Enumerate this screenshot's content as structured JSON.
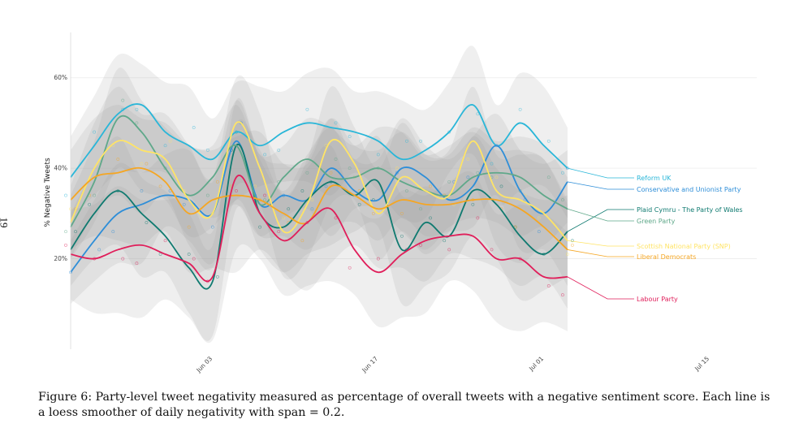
{
  "page_number": "19",
  "caption": "Figure 6: Party-level tweet negativity measured as percentage of overall tweets with a negative sentiment score. Each line is a loess smoother of daily negativity with span = 0.2.",
  "chart_data": {
    "type": "line",
    "title": "",
    "xlabel": "",
    "ylabel": "% Negative Tweets",
    "x_ticks": [
      "Jun 03",
      "Jun 17",
      "Jul 01",
      "Jul 15"
    ],
    "y_ticks": [
      "20%",
      "40%",
      "60%"
    ],
    "xlim": [
      "2024-05-22",
      "2024-07-19"
    ],
    "ylim": [
      0,
      70
    ],
    "grid": true,
    "legend": "right, line-end labels",
    "x_dates": [
      "2024-05-22",
      "2024-05-24",
      "2024-05-26",
      "2024-05-28",
      "2024-05-30",
      "2024-06-01",
      "2024-06-03",
      "2024-06-05",
      "2024-06-07",
      "2024-06-09",
      "2024-06-11",
      "2024-06-13",
      "2024-06-15",
      "2024-06-17",
      "2024-06-19",
      "2024-06-21",
      "2024-06-23",
      "2024-06-25",
      "2024-06-27",
      "2024-06-29",
      "2024-07-01",
      "2024-07-03"
    ],
    "series": [
      {
        "name": "Reform UK",
        "color": "#29b6d8",
        "values": [
          38,
          45,
          52,
          54,
          48,
          45,
          42,
          48,
          45,
          48,
          50,
          49,
          48,
          46,
          42,
          44,
          48,
          54,
          45,
          50,
          45,
          40
        ]
      },
      {
        "name": "Conservative and Unionist Party",
        "color": "#2e8ed8",
        "values": [
          17,
          24,
          30,
          32,
          34,
          33,
          30,
          46,
          32,
          34,
          33,
          40,
          35,
          33,
          40,
          38,
          33,
          36,
          45,
          35,
          30,
          37
        ]
      },
      {
        "name": "Plaid Cymru - The Party of Wales",
        "color": "#0f7a70",
        "values": [
          22,
          30,
          35,
          30,
          25,
          18,
          15,
          45,
          30,
          27,
          33,
          37,
          34,
          37,
          22,
          28,
          25,
          35,
          32,
          25,
          21,
          26
        ]
      },
      {
        "name": "Green Party",
        "color": "#5fa88a",
        "values": [
          27,
          37,
          51,
          48,
          40,
          34,
          38,
          45,
          32,
          38,
          42,
          38,
          38,
          40,
          37,
          35,
          34,
          38,
          39,
          38,
          34,
          31
        ]
      },
      {
        "name": "Scottish National Party (SNP)",
        "color": "#ffe466",
        "values": [
          28,
          40,
          46,
          44,
          42,
          33,
          30,
          50,
          40,
          26,
          32,
          46,
          41,
          30,
          38,
          35,
          34,
          46,
          35,
          33,
          30,
          24
        ]
      },
      {
        "name": "Liberal Democrats",
        "color": "#f5a623",
        "values": [
          33,
          38,
          39,
          40,
          37,
          30,
          33,
          34,
          33,
          30,
          28,
          36,
          34,
          31,
          33,
          32,
          32,
          33,
          33,
          31,
          27,
          22
        ]
      },
      {
        "name": "Labour Party",
        "color": "#e01e5a",
        "values": [
          21,
          20,
          22,
          23,
          21,
          19,
          16,
          38,
          30,
          24,
          28,
          31,
          22,
          17,
          21,
          24,
          25,
          25,
          20,
          20,
          16,
          16
        ]
      }
    ]
  }
}
